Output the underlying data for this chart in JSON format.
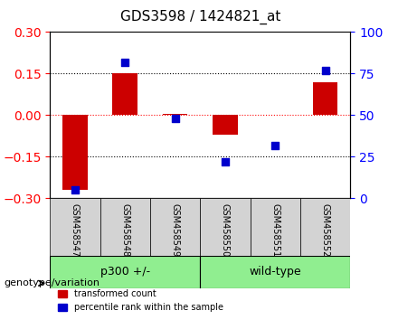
{
  "title": "GDS3598 / 1424821_at",
  "samples": [
    "GSM458547",
    "GSM458548",
    "GSM458549",
    "GSM458550",
    "GSM458551",
    "GSM458552"
  ],
  "transformed_count": [
    -0.27,
    0.15,
    0.005,
    -0.07,
    0.0,
    0.12
  ],
  "percentile_rank": [
    5,
    82,
    48,
    22,
    32,
    77
  ],
  "groups": [
    {
      "label": "p300 +/-",
      "indices": [
        0,
        1,
        2
      ],
      "color": "#90EE90"
    },
    {
      "label": "wild-type",
      "indices": [
        3,
        4,
        5
      ],
      "color": "#90EE90"
    }
  ],
  "bar_color": "#CC0000",
  "dot_color": "#0000CC",
  "left_ylim": [
    -0.3,
    0.3
  ],
  "right_ylim": [
    0,
    100
  ],
  "left_yticks": [
    -0.3,
    -0.15,
    0,
    0.15,
    0.3
  ],
  "right_yticks": [
    0,
    25,
    50,
    75,
    100
  ],
  "hline_values": [
    -0.15,
    0,
    0.15
  ],
  "hline_colors": [
    "black",
    "red",
    "black"
  ],
  "hline_styles": [
    "dotted",
    "dotted",
    "dotted"
  ],
  "group_label": "genotype/variation",
  "legend_items": [
    {
      "label": "transformed count",
      "color": "#CC0000"
    },
    {
      "label": "percentile rank within the sample",
      "color": "#0000CC"
    }
  ],
  "bar_width": 0.5,
  "bg_plot": "#FFFFFF",
  "bg_xtick": "#D3D3D3"
}
